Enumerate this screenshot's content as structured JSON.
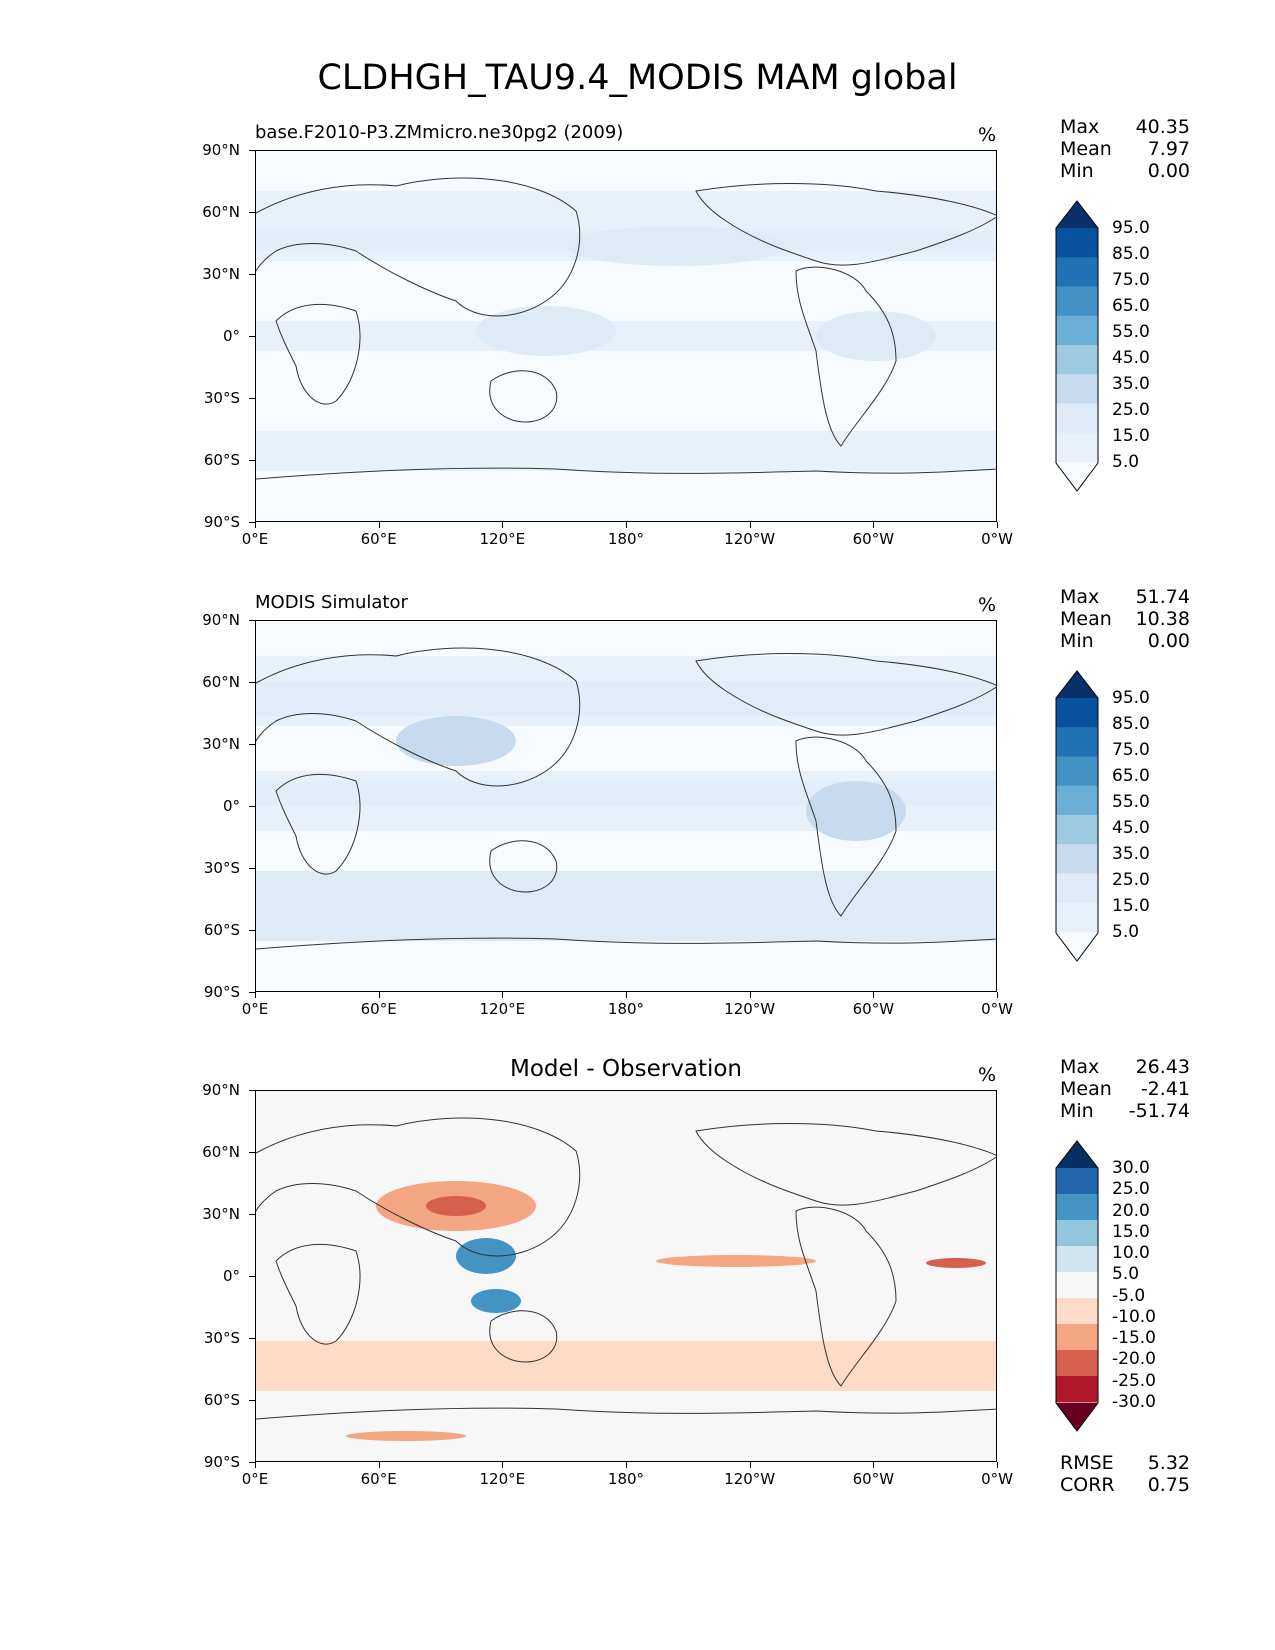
{
  "title": "CLDHGH_TAU9.4_MODIS MAM global",
  "axis": {
    "yticks": [
      "90°N",
      "60°N",
      "30°N",
      "0°",
      "30°S",
      "60°S",
      "90°S"
    ],
    "xticks": [
      "0°E",
      "60°E",
      "120°E",
      "180°",
      "120°W",
      "60°W",
      "0°W"
    ]
  },
  "panels": [
    {
      "title": "base.F2010-P3.ZMmicro.ne30pg2 (2009)",
      "units": "%",
      "stats": [
        {
          "label": "Max",
          "value": "40.35"
        },
        {
          "label": "Mean",
          "value": "7.97"
        },
        {
          "label": "Min",
          "value": "0.00"
        }
      ],
      "colorbar": {
        "labels": [
          "95.0",
          "85.0",
          "75.0",
          "65.0",
          "55.0",
          "45.0",
          "35.0",
          "25.0",
          "15.0",
          "5.0"
        ],
        "colors": [
          "#08306b",
          "#08519c",
          "#2171b5",
          "#4292c6",
          "#6baed6",
          "#9ecae1",
          "#c6dbef",
          "#deebf7",
          "#e8f1fa",
          "#f7fbff"
        ]
      }
    },
    {
      "title": "MODIS Simulator",
      "units": "%",
      "stats": [
        {
          "label": "Max",
          "value": "51.74"
        },
        {
          "label": "Mean",
          "value": "10.38"
        },
        {
          "label": "Min",
          "value": "0.00"
        }
      ],
      "colorbar": {
        "labels": [
          "95.0",
          "85.0",
          "75.0",
          "65.0",
          "55.0",
          "45.0",
          "35.0",
          "25.0",
          "15.0",
          "5.0"
        ],
        "colors": [
          "#08306b",
          "#08519c",
          "#2171b5",
          "#4292c6",
          "#6baed6",
          "#9ecae1",
          "#c6dbef",
          "#deebf7",
          "#e8f1fa",
          "#f7fbff"
        ]
      }
    },
    {
      "title": "Model - Observation",
      "units": "%",
      "stats": [
        {
          "label": "Max",
          "value": "26.43"
        },
        {
          "label": "Mean",
          "value": "-2.41"
        },
        {
          "label": "Min",
          "value": "-51.74"
        }
      ],
      "colorbar": {
        "labels": [
          "30.0",
          "25.0",
          "20.0",
          "15.0",
          "10.0",
          "5.0",
          "-5.0",
          "-10.0",
          "-15.0",
          "-20.0",
          "-25.0",
          "-30.0"
        ],
        "colors": [
          "#053061",
          "#2166ac",
          "#4393c3",
          "#92c5de",
          "#d1e5f0",
          "#f7f7f7",
          "#fddbc7",
          "#f4a582",
          "#d6604d",
          "#b2182b",
          "#67001f"
        ]
      },
      "footer": [
        {
          "label": "RMSE",
          "value": "5.32"
        },
        {
          "label": "CORR",
          "value": "0.75"
        }
      ]
    }
  ]
}
